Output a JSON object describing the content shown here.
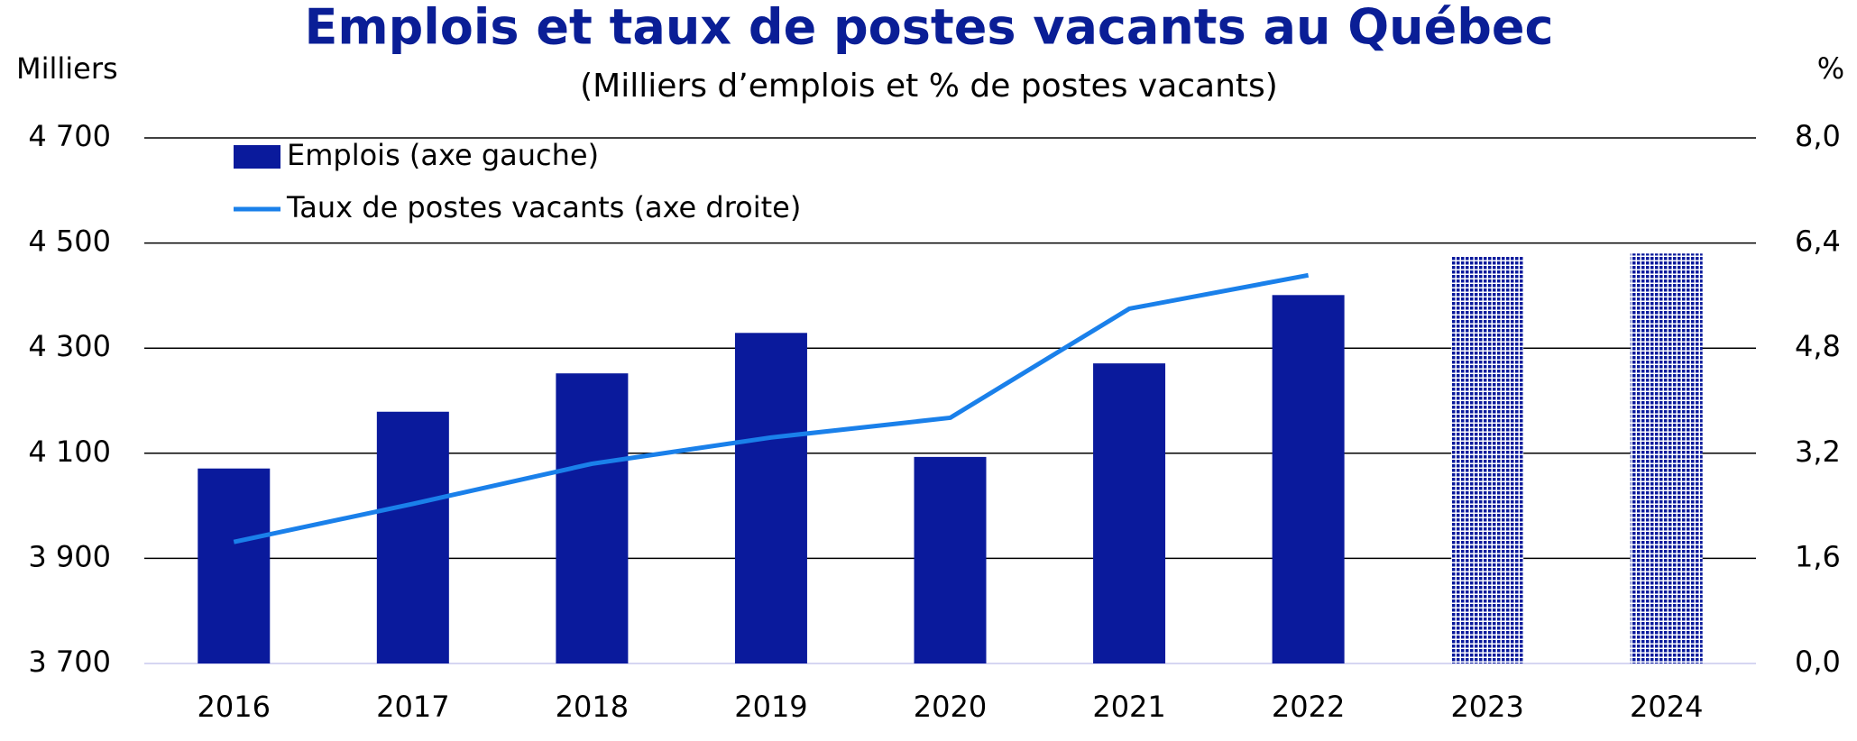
{
  "chart_data": {
    "type": "bar_line",
    "title": "Emplois et taux de postes vacants au Québec",
    "subtitle": "(Milliers d’emplois et % de postes vacants)",
    "y_label": "Milliers",
    "y2_label": "%",
    "categories": [
      "2016",
      "2017",
      "2018",
      "2019",
      "2020",
      "2021",
      "2022",
      "2023",
      "2024"
    ],
    "series": [
      {
        "name": "Emplois (axe gauche)",
        "type": "bar",
        "color": "#0a1a9c",
        "values": [
          4071,
          4179,
          4252,
          4329,
          4093,
          4271,
          4401,
          4476,
          4480
        ],
        "patterned": [
          false,
          false,
          false,
          false,
          false,
          false,
          false,
          true,
          true
        ]
      },
      {
        "name": "Taux de postes vacants (axe droite)",
        "type": "line",
        "axis": "y2",
        "color": "#1a80ea",
        "values": [
          1.85,
          2.43,
          3.04,
          3.44,
          3.74,
          5.4,
          5.91,
          null,
          null
        ]
      }
    ],
    "ylim": [
      3700,
      4700
    ],
    "yticks": [
      {
        "value": 3700,
        "label": "3 700"
      },
      {
        "value": 3900,
        "label": "3 900"
      },
      {
        "value": 4100,
        "label": "4 100"
      },
      {
        "value": 4300,
        "label": "4 300"
      },
      {
        "value": 4500,
        "label": "4 500"
      },
      {
        "value": 4700,
        "label": "4 700"
      }
    ],
    "y2lim": [
      0,
      8
    ],
    "y2ticks": [
      {
        "value": 0,
        "label": "0,0"
      },
      {
        "value": 1.6,
        "label": "1,6"
      },
      {
        "value": 3.2,
        "label": "3,2"
      },
      {
        "value": 4.8,
        "label": "4,8"
      },
      {
        "value": 6.4,
        "label": "6,4"
      },
      {
        "value": 8,
        "label": "8,0"
      }
    ],
    "grid": true,
    "legend": "top-left"
  }
}
